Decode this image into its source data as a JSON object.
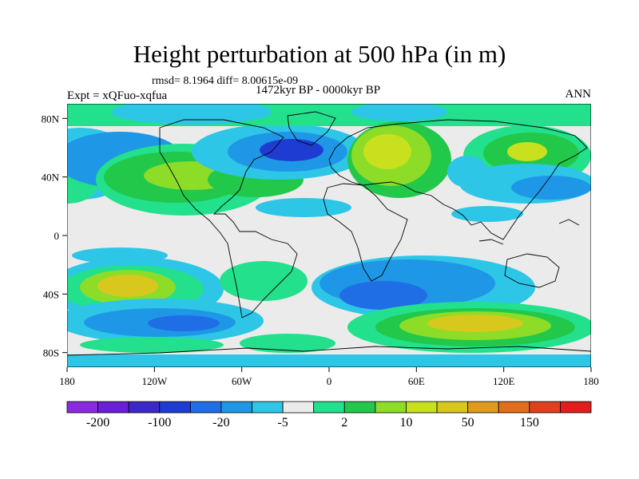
{
  "title": "Height perturbation at 500 hPa (in m)",
  "stats": "rmsd= 8.1964  diff= 8.00615e-09",
  "experiment": "Expt = xQFuo-xqfua",
  "period": "1472kyr BP - 0000kyr BP",
  "season": "ANN",
  "lat_ticks": [
    "80N",
    "40N",
    "0",
    "40S",
    "80S"
  ],
  "lon_ticks": [
    "180",
    "120W",
    "60W",
    "0",
    "60E",
    "120E",
    "180"
  ],
  "colorbar": {
    "colors": [
      "#8a2be2",
      "#6a1fd6",
      "#3c28c8",
      "#1e3cd2",
      "#1f6ee6",
      "#1e98e6",
      "#2ec6e6",
      "#ebebeb",
      "#22e08c",
      "#22c84a",
      "#8cdc28",
      "#c8e01e",
      "#d8c81e",
      "#e09a1e",
      "#e06e1e",
      "#e0401e",
      "#e01e1e"
    ],
    "labels": [
      "-200",
      "-100",
      "-20",
      "-5",
      "2",
      "10",
      "50",
      "150"
    ]
  }
}
